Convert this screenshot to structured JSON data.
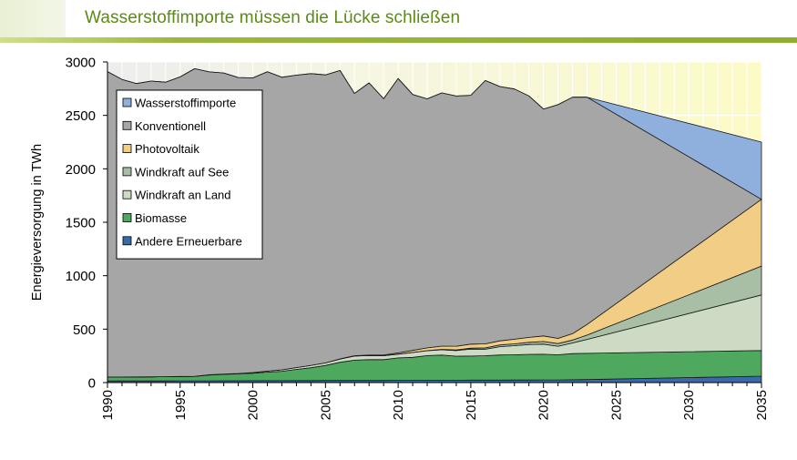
{
  "header": {
    "title": "Wasserstoffimporte müssen die Lücke schließen"
  },
  "colors": {
    "title": "#5c8a16",
    "rule": "#8fae2d",
    "background_top": "#fbfac8",
    "background_left": "#f0f0f0"
  },
  "chart_data": {
    "type": "area",
    "stacked": true,
    "ylabel": "Energieversorgung in TWh",
    "xlabel": "",
    "xlim": [
      1990,
      2035
    ],
    "ylim": [
      0,
      3000
    ],
    "x_ticks": [
      1990,
      1995,
      2000,
      2005,
      2010,
      2015,
      2020,
      2025,
      2030,
      2035
    ],
    "y_ticks": [
      0,
      500,
      1000,
      1500,
      2000,
      2500,
      3000
    ],
    "grid": "vertical and horizontal",
    "legend_position": "top-left",
    "x": [
      1990,
      1991,
      1992,
      1993,
      1994,
      1995,
      1996,
      1997,
      1998,
      1999,
      2000,
      2001,
      2002,
      2003,
      2004,
      2005,
      2006,
      2007,
      2008,
      2009,
      2010,
      2011,
      2012,
      2013,
      2014,
      2015,
      2016,
      2017,
      2018,
      2019,
      2020,
      2021,
      2022,
      2023,
      2035
    ],
    "series": [
      {
        "name": "Andere Erneuerbare",
        "color": "#3a6aa8",
        "values": [
          15,
          15,
          15,
          15,
          15,
          16,
          16,
          16,
          17,
          17,
          18,
          18,
          18,
          19,
          19,
          20,
          20,
          20,
          20,
          20,
          21,
          21,
          22,
          22,
          22,
          23,
          23,
          23,
          24,
          24,
          25,
          25,
          26,
          28,
          60
        ]
      },
      {
        "name": "Biomasse",
        "color": "#4ea85e",
        "values": [
          37,
          37,
          38,
          39,
          40,
          40,
          42,
          55,
          60,
          65,
          70,
          80,
          88,
          105,
          120,
          140,
          170,
          190,
          195,
          195,
          210,
          215,
          230,
          235,
          225,
          225,
          228,
          235,
          236,
          240,
          240,
          235,
          245,
          246,
          240
        ]
      },
      {
        "name": "Windkraft an Land",
        "color": "#cddbc4",
        "values": [
          0,
          0,
          0,
          0,
          0,
          1,
          1,
          2,
          3,
          3,
          6,
          9,
          13,
          17,
          22,
          24,
          30,
          38,
          38,
          36,
          35,
          45,
          46,
          50,
          53,
          66,
          62,
          78,
          85,
          92,
          95,
          80,
          100,
          130,
          520
        ]
      },
      {
        "name": "Windkraft auf See",
        "color": "#a8bfa6",
        "values": [
          0,
          0,
          0,
          0,
          0,
          0,
          0,
          0,
          0,
          0,
          0,
          0,
          0,
          0,
          0,
          0,
          0,
          0,
          0,
          0,
          1,
          1,
          1,
          4,
          6,
          8,
          12,
          16,
          17,
          21,
          24,
          25,
          27,
          40,
          270
        ]
      },
      {
        "name": "Photovoltaik",
        "color": "#f1cd85",
        "values": [
          0,
          0,
          0,
          0,
          0,
          0,
          0,
          0,
          0,
          0,
          0,
          0,
          0,
          0,
          0,
          0,
          2,
          3,
          4,
          6,
          11,
          19,
          26,
          30,
          34,
          38,
          37,
          38,
          44,
          46,
          52,
          48,
          60,
          100,
          625
        ]
      },
      {
        "name": "Konventionell",
        "color": "#a6a6a6",
        "values": [
          2858,
          2784,
          2745,
          2767,
          2756,
          2803,
          2878,
          2834,
          2817,
          2769,
          2757,
          2802,
          2738,
          2735,
          2730,
          2695,
          2698,
          2454,
          2547,
          2399,
          2567,
          2395,
          2330,
          2369,
          2341,
          2328,
          2464,
          2380,
          2341,
          2259,
          2123,
          2187,
          2212,
          2126,
          0
        ]
      },
      {
        "name": "Wasserstoffimporte",
        "color": "#8fb0dd",
        "values": [
          0,
          0,
          0,
          0,
          0,
          0,
          0,
          0,
          0,
          0,
          0,
          0,
          0,
          0,
          0,
          0,
          0,
          0,
          0,
          0,
          0,
          0,
          0,
          0,
          0,
          0,
          0,
          0,
          0,
          0,
          0,
          0,
          0,
          0,
          535
        ]
      }
    ]
  }
}
